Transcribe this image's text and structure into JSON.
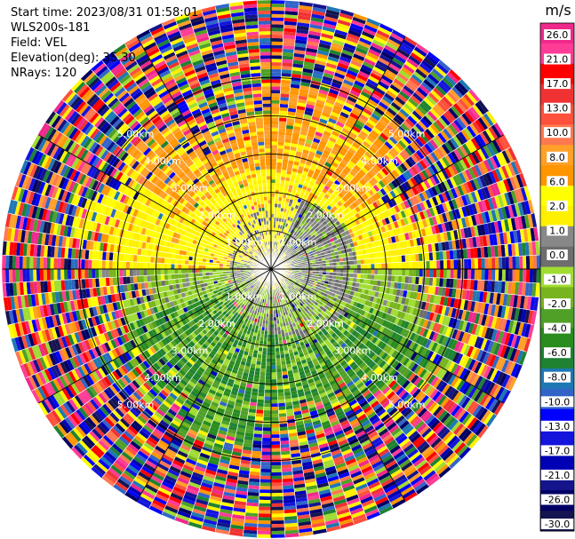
{
  "header": {
    "start_time": "Start time: 2023/08/31 01:58:01",
    "instrument": "WLS200s-181",
    "field": "Field: VEL",
    "elevation": "Elevation(deg): 35.30",
    "nrays": "NRays: 120"
  },
  "chart_data": {
    "type": "heatmap",
    "projection": "polar-ppi",
    "nrays": 120,
    "range_rings_km": [
      1.0,
      2.0,
      3.0,
      4.0,
      5.0
    ],
    "ring_label_text": [
      "1.00km",
      "2.00km",
      "3.00km",
      "4.00km",
      "5.00km"
    ],
    "max_range_km": 7.0,
    "grid": true,
    "colorbar": {
      "unit": "m/s",
      "tick_labels": [
        "26.0",
        "21.0",
        "17.0",
        "13.0",
        "10.0",
        "8.0",
        "6.0",
        "2.0",
        "1.0",
        "0.0",
        "-1.0",
        "-2.0",
        "-4.0",
        "-6.0",
        "-8.0",
        "-10.0",
        "-13.0",
        "-17.0",
        "-21.0",
        "-26.0",
        "-30.0"
      ],
      "colors": [
        "#f0288c",
        "#ff3c96",
        "#ff0000",
        "#f03232",
        "#ff503c",
        "#ff7850",
        "#ffa028",
        "#ff9600",
        "#ffff00",
        "#fff000",
        "#888888",
        "#6e6e6e",
        "#a0dc32",
        "#78b41e",
        "#50a028",
        "#288c1e",
        "#1e8232",
        "#1e78b4",
        "#3264c8",
        "#0000ff",
        "#1414dc",
        "#0000b4",
        "#14148c",
        "#000064",
        "#141450"
      ]
    }
  }
}
